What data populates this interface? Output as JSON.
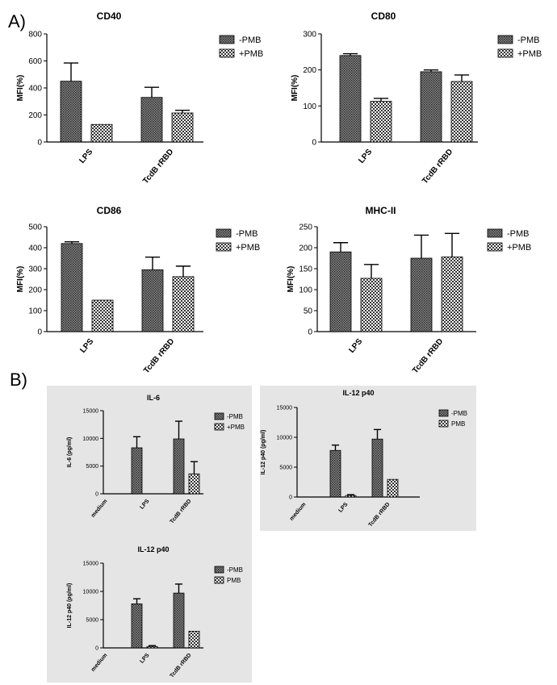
{
  "panels": {
    "a": "A)",
    "b": "B)"
  },
  "chart_data": [
    {
      "type": "bar",
      "title": "CD40",
      "ylabel": "MFI(%)",
      "categories": [
        "LPS",
        "TcdB rRBD"
      ],
      "ylim": [
        0,
        800
      ],
      "yticks": [
        0,
        200,
        400,
        600,
        800
      ],
      "series": [
        {
          "name": "-PMB",
          "values": [
            450,
            330
          ],
          "errors": [
            135,
            75
          ],
          "pattern": "dark"
        },
        {
          "name": "+PMB",
          "values": [
            130,
            215
          ],
          "errors": [
            0,
            20
          ],
          "pattern": "light"
        }
      ]
    },
    {
      "type": "bar",
      "title": "CD80",
      "ylabel": "MFI(%)",
      "categories": [
        "LPS",
        "TcdB rRBD"
      ],
      "ylim": [
        0,
        300
      ],
      "yticks": [
        0,
        100,
        200,
        300
      ],
      "series": [
        {
          "name": "-PMB",
          "values": [
            240,
            195
          ],
          "errors": [
            5,
            5
          ],
          "pattern": "dark"
        },
        {
          "name": "+PMB",
          "values": [
            113,
            168
          ],
          "errors": [
            8,
            18
          ],
          "pattern": "light"
        }
      ]
    },
    {
      "type": "bar",
      "title": "CD86",
      "ylabel": "MFI(%)",
      "categories": [
        "LPS",
        "TcdB rRBD"
      ],
      "ylim": [
        0,
        500
      ],
      "yticks": [
        0,
        100,
        200,
        300,
        400,
        500
      ],
      "series": [
        {
          "name": "-PMB",
          "values": [
            420,
            295
          ],
          "errors": [
            8,
            60
          ],
          "pattern": "dark"
        },
        {
          "name": "+PMB",
          "values": [
            150,
            262
          ],
          "errors": [
            0,
            50
          ],
          "pattern": "light"
        }
      ]
    },
    {
      "type": "bar",
      "title": "MHC-II",
      "ylabel": "MFI(%)",
      "categories": [
        "LPS",
        "TcdB rRBD"
      ],
      "ylim": [
        0,
        250
      ],
      "yticks": [
        0,
        50,
        100,
        150,
        200,
        250
      ],
      "series": [
        {
          "name": "-PMB",
          "values": [
            190,
            175
          ],
          "errors": [
            22,
            55
          ],
          "pattern": "dark"
        },
        {
          "name": "+PMB",
          "values": [
            127,
            178
          ],
          "errors": [
            33,
            56
          ],
          "pattern": "light"
        }
      ]
    },
    {
      "type": "bar",
      "title": "IL-6",
      "ylabel": "IL-6 (pg/ml)",
      "categories": [
        "medium",
        "LPS",
        "TcdB rRBD"
      ],
      "ylim": [
        0,
        15000
      ],
      "yticks": [
        0,
        5000,
        10000,
        15000
      ],
      "series": [
        {
          "name": "-PMB",
          "values": [
            0,
            8300,
            9900
          ],
          "errors": [
            0,
            2000,
            3200
          ],
          "pattern": "dark"
        },
        {
          "name": "+PMB",
          "values": [
            0,
            0,
            3600
          ],
          "errors": [
            0,
            0,
            2200
          ],
          "pattern": "light"
        }
      ]
    },
    {
      "type": "bar",
      "title": "IL-12 p40",
      "ylabel": "IL-12 p40 (pg/ml)",
      "categories": [
        "medium",
        "LPS",
        "TcdB rRBD"
      ],
      "ylim": [
        0,
        15000
      ],
      "yticks": [
        0,
        5000,
        10000,
        15000
      ],
      "series": [
        {
          "name": "-PMB",
          "values": [
            0,
            7800,
            9700
          ],
          "errors": [
            0,
            900,
            1600
          ],
          "pattern": "dark"
        },
        {
          "name": "PMB",
          "values": [
            0,
            250,
            2950
          ],
          "errors": [
            0,
            150,
            0
          ],
          "pattern": "light"
        }
      ]
    },
    {
      "type": "bar",
      "title": "IL-12 p40",
      "ylabel": "IL-12 p40 (pg/ml)",
      "categories": [
        "medium",
        "LPS",
        "TcdB rRBD"
      ],
      "ylim": [
        0,
        15000
      ],
      "yticks": [
        0,
        5000,
        10000,
        15000
      ],
      "series": [
        {
          "name": "-PMB",
          "values": [
            0,
            7800,
            9700
          ],
          "errors": [
            0,
            900,
            1600
          ],
          "pattern": "dark"
        },
        {
          "name": "PMB",
          "values": [
            0,
            250,
            2950
          ],
          "errors": [
            0,
            150,
            0
          ],
          "pattern": "light"
        }
      ]
    }
  ]
}
